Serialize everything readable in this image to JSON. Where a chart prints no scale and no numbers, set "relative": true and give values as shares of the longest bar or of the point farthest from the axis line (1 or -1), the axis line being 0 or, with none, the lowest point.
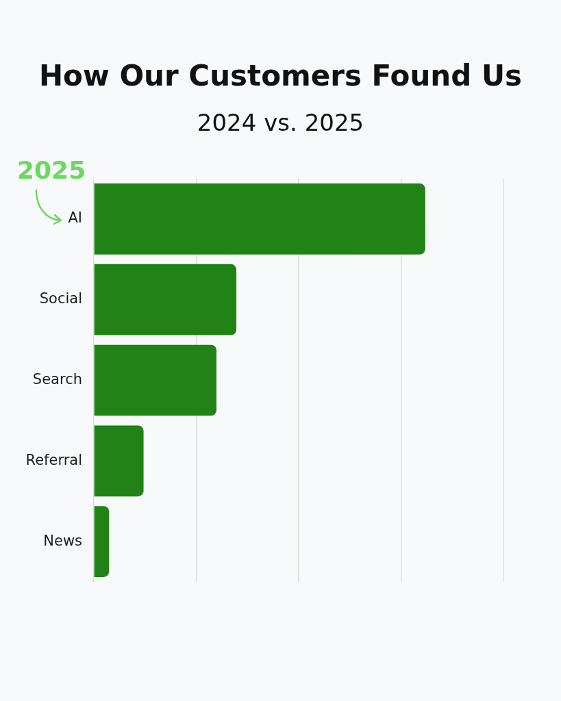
{
  "chart_data": {
    "type": "bar",
    "orientation": "horizontal",
    "title": "How Our Customers Found Us",
    "subtitle": "2024 vs. 2025",
    "categories": [
      "AI",
      "Social",
      "Search",
      "Referral",
      "News"
    ],
    "values": [
      1,
      0.43,
      0.37,
      0.15,
      0.046
    ],
    "color": "#218316",
    "relative": true,
    "grid": "x",
    "annotations": [
      "2025"
    ]
  }
}
